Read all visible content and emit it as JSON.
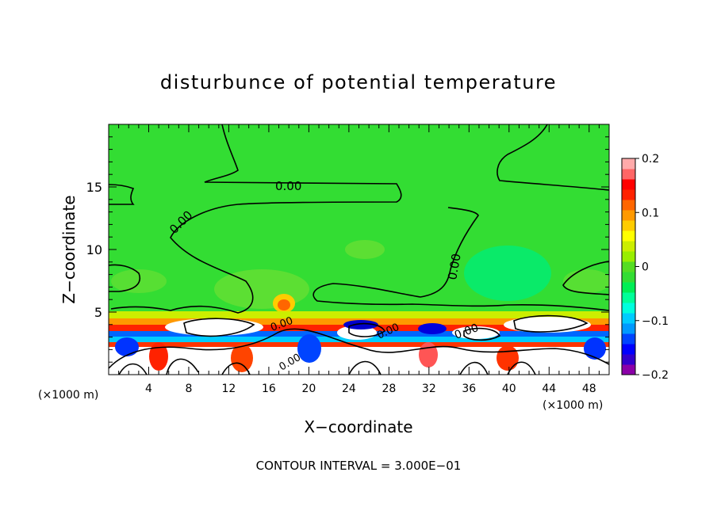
{
  "chart_data": {
    "type": "heatmap",
    "title": "disturbunce of potential temperature",
    "xlabel": "X−coordinate",
    "ylabel": "Z−coordinate",
    "x_unit": "(×1000 m)",
    "x_unit_right": "(×1000 m)",
    "xlim": [
      0,
      50
    ],
    "ylim": [
      0,
      20
    ],
    "x_ticks": [
      "4",
      "8",
      "12",
      "16",
      "20",
      "24",
      "28",
      "32",
      "36",
      "40",
      "44",
      "48"
    ],
    "y_ticks": [
      "5",
      "10",
      "15"
    ],
    "footer": "CONTOUR INTERVAL = 3.000E−01",
    "contour_labels": [
      "0.00",
      "0.00",
      "0.00",
      "0.00",
      "0.00",
      "0.00",
      "0.00"
    ],
    "colorbar": {
      "vmin": -0.2,
      "vmax": 0.2,
      "tick_values": [
        0.2,
        0.1,
        0,
        -0.1,
        -0.2
      ],
      "tick_labels": [
        "0.2",
        "0.1",
        "0",
        "−0.1",
        "−0.2"
      ],
      "colors": [
        "#8b00a8",
        "#3300cc",
        "#0000ff",
        "#0044ff",
        "#0099ff",
        "#00ccff",
        "#00ffdd",
        "#00ff99",
        "#00ee55",
        "#33dd33",
        "#55dd22",
        "#99ee00",
        "#ccee00",
        "#ffff00",
        "#ffcc00",
        "#ff9900",
        "#ff6600",
        "#ff2200",
        "#ff0000",
        "#ff6666",
        "#ffaaaa"
      ]
    }
  }
}
